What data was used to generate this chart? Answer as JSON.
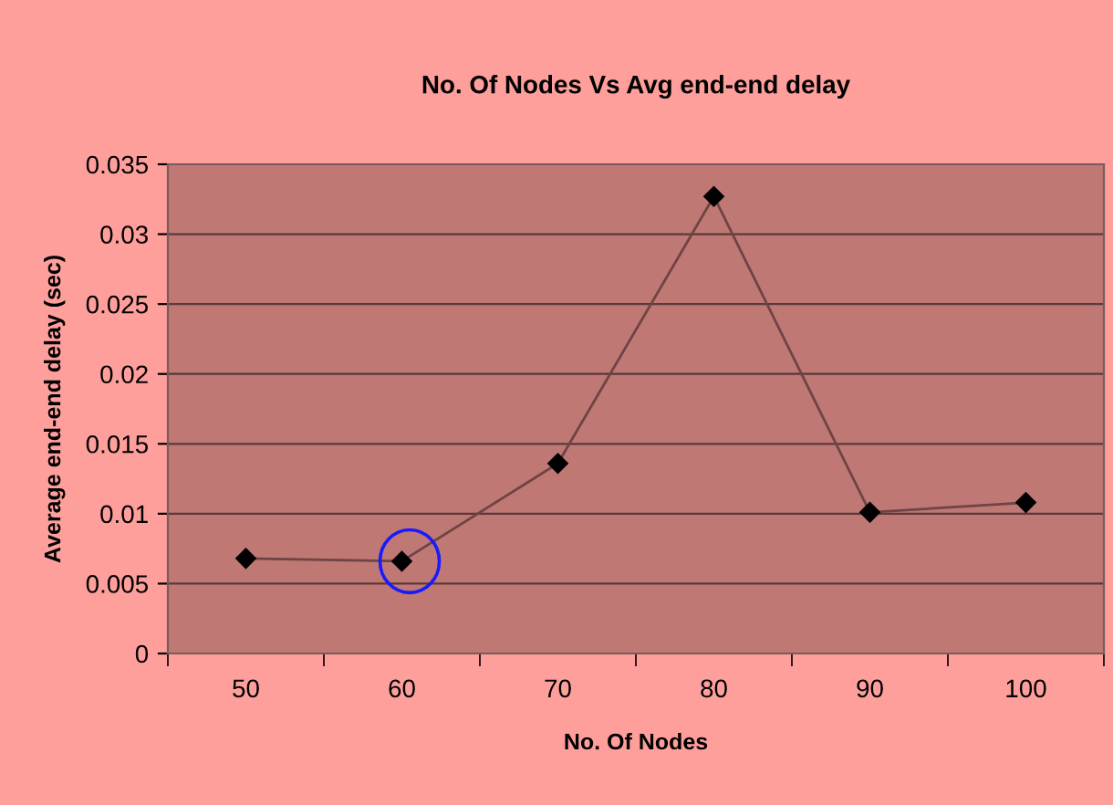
{
  "chart_data": {
    "type": "line",
    "title": "No. Of Nodes Vs Avg end-end delay",
    "xlabel": "No. Of Nodes",
    "ylabel": "Average end-end delay (sec)",
    "categories": [
      "50",
      "60",
      "70",
      "80",
      "90",
      "100"
    ],
    "series": [
      {
        "color": "#6e4444",
        "values": [
          0.0068,
          0.0066,
          0.0136,
          0.0327,
          0.0101,
          0.0108
        ]
      }
    ],
    "ylim": [
      0,
      0.035
    ],
    "yticks": [
      0,
      0.005,
      0.01,
      0.015,
      0.02,
      0.025,
      0.03,
      0.035
    ],
    "grid": "y",
    "marker": "diamond",
    "line_style": "solid",
    "legend": false
  }
}
